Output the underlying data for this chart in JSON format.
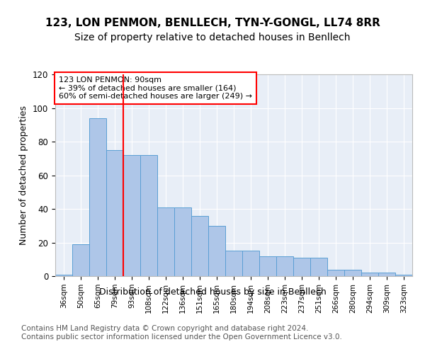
{
  "title1": "123, LON PENMON, BENLLECH, TYN-Y-GONGL, LL74 8RR",
  "title2": "Size of property relative to detached houses in Benllech",
  "xlabel": "Distribution of detached houses by size in Benllech",
  "ylabel": "Number of detached properties",
  "categories": [
    "36sqm",
    "50sqm",
    "65sqm",
    "79sqm",
    "93sqm",
    "108sqm",
    "122sqm",
    "136sqm",
    "151sqm",
    "165sqm",
    "180sqm",
    "194sqm",
    "208sqm",
    "223sqm",
    "237sqm",
    "251sqm",
    "266sqm",
    "280sqm",
    "294sqm",
    "309sqm",
    "323sqm"
  ],
  "histogram_values": [
    1,
    19,
    94,
    75,
    72,
    72,
    41,
    41,
    36,
    30,
    15,
    15,
    12,
    12,
    11,
    11,
    4,
    4,
    2,
    2,
    1
  ],
  "bar_color": "#aec6e8",
  "bar_edge_color": "#5a9fd4",
  "vline_index": 4,
  "vline_color": "red",
  "annotation_text": "123 LON PENMON: 90sqm\n← 39% of detached houses are smaller (164)\n60% of semi-detached houses are larger (249) →",
  "annotation_box_color": "white",
  "annotation_box_edge_color": "red",
  "ylim": [
    0,
    120
  ],
  "yticks": [
    0,
    20,
    40,
    60,
    80,
    100,
    120
  ],
  "background_color": "#e8eef7",
  "footer_text": "Contains HM Land Registry data © Crown copyright and database right 2024.\nContains public sector information licensed under the Open Government Licence v3.0.",
  "title1_fontsize": 11,
  "title2_fontsize": 10,
  "xlabel_fontsize": 9,
  "ylabel_fontsize": 9,
  "footer_fontsize": 7.5
}
